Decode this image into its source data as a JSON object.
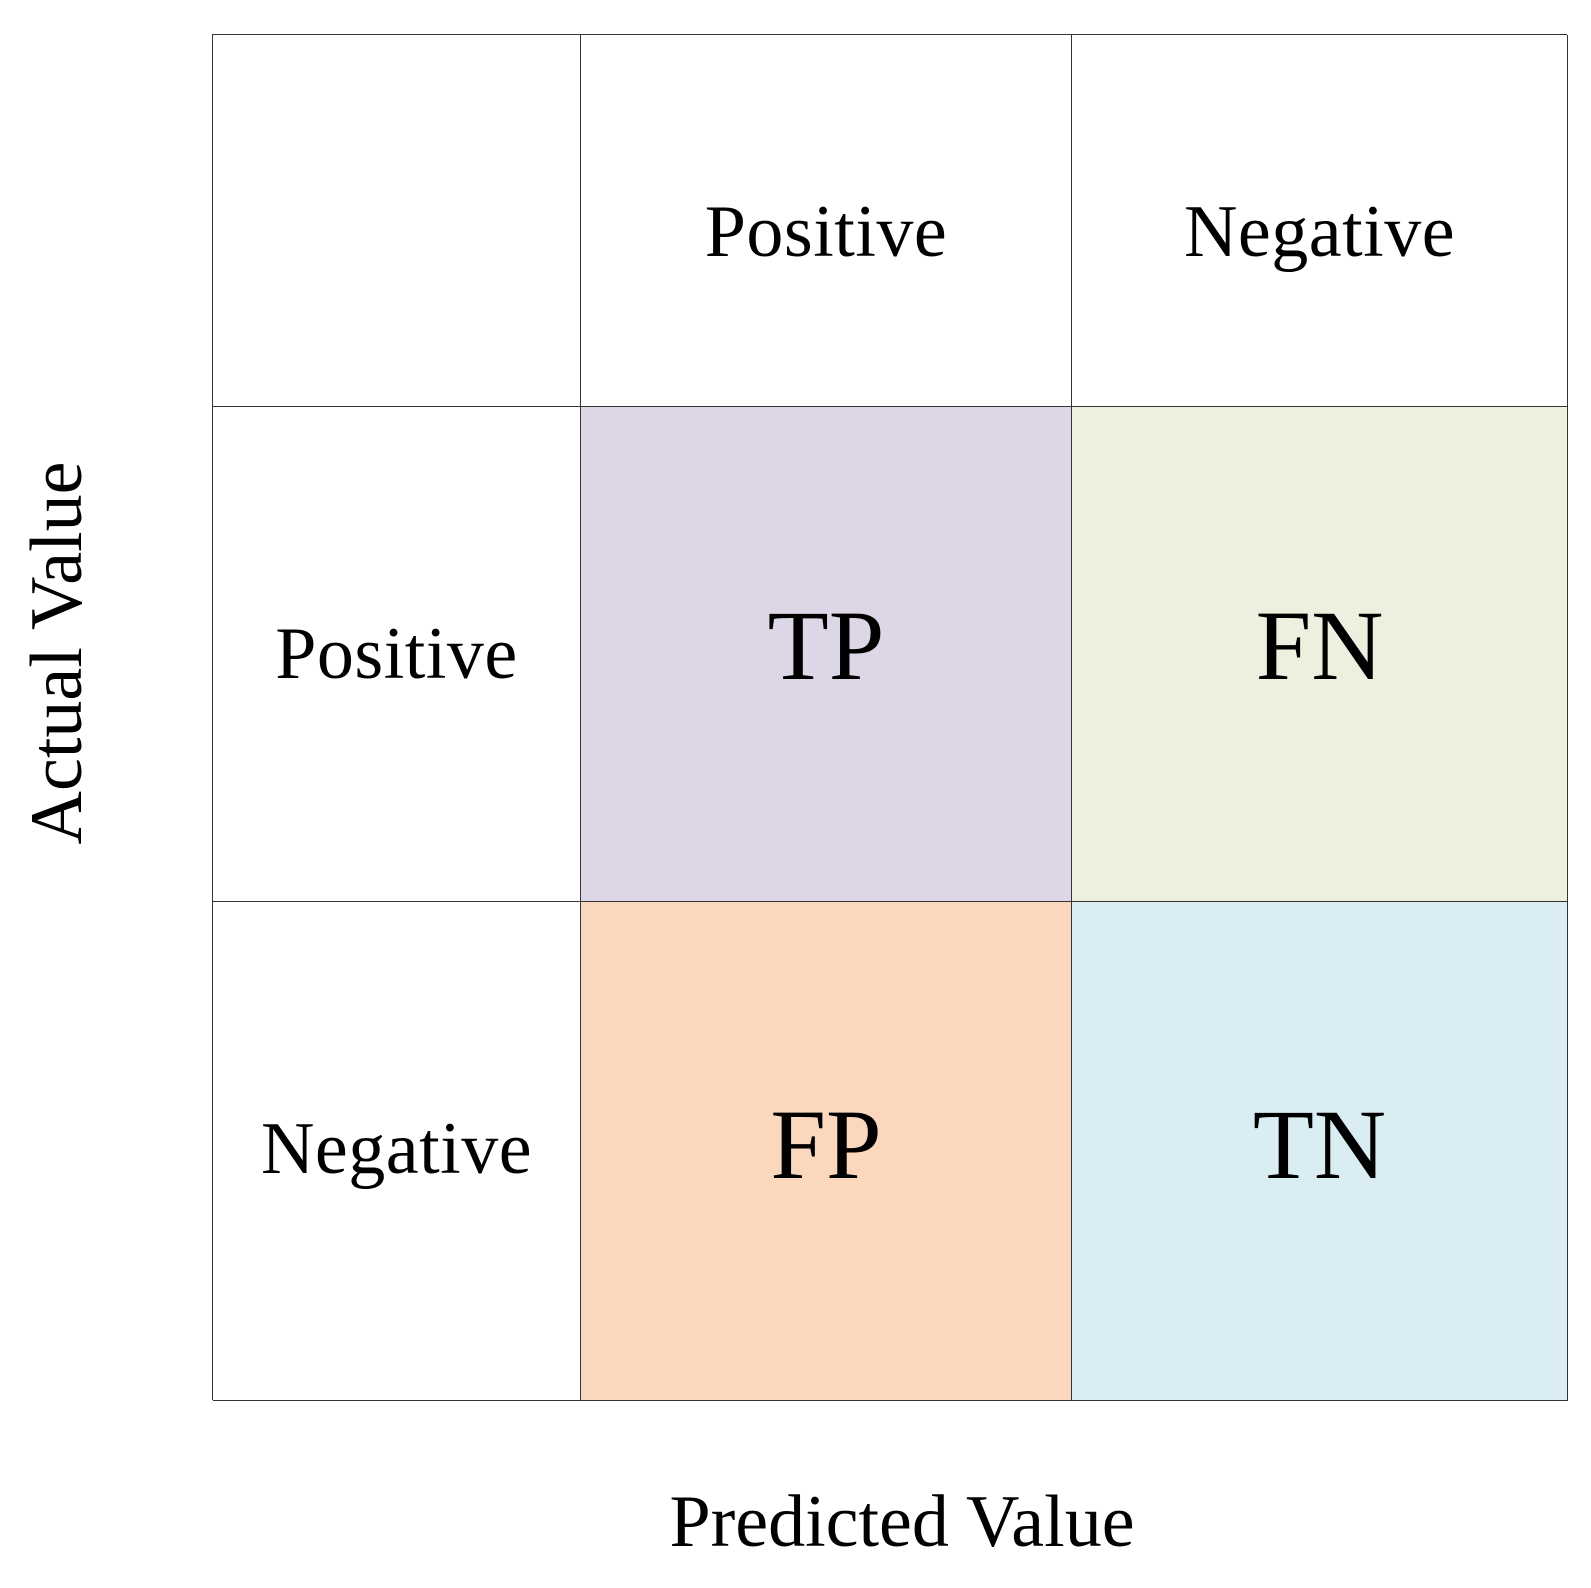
{
  "axes": {
    "x_label": "Predicted Value",
    "y_label": "Actual Value"
  },
  "columns": [
    "Positive",
    "Negative"
  ],
  "rows": [
    "Positive",
    "Negative"
  ],
  "cells": [
    [
      {
        "label": "TP",
        "color": "#dcd6e6"
      },
      {
        "label": "FN",
        "color": "#ebf0df"
      }
    ],
    [
      {
        "label": "FP",
        "color": "#fad7bd"
      },
      {
        "label": "TN",
        "color": "#daedf3"
      }
    ]
  ],
  "colors": {
    "grid_line": "#333333",
    "background": "#ffffff"
  }
}
